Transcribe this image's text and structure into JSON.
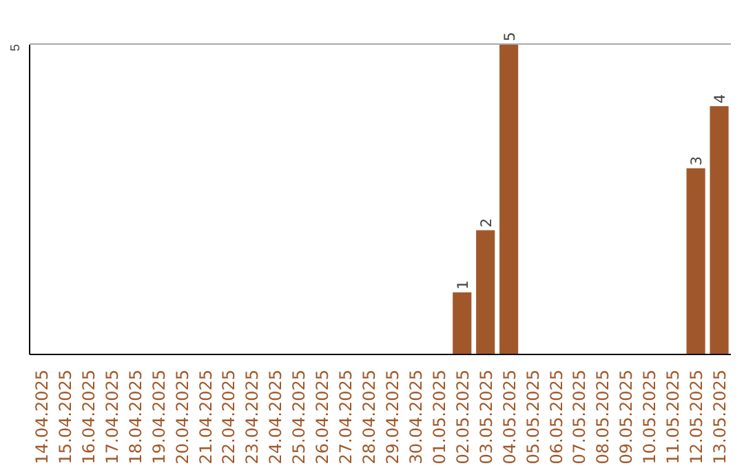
{
  "chart_data": {
    "type": "bar",
    "categories": [
      "14.04.2025",
      "15.04.2025",
      "16.04.2025",
      "17.04.2025",
      "18.04.2025",
      "19.04.2025",
      "20.04.2025",
      "21.04.2025",
      "22.04.2025",
      "23.04.2025",
      "24.04.2025",
      "25.04.2025",
      "26.04.2025",
      "27.04.2025",
      "28.04.2025",
      "29.04.2025",
      "30.04.2025",
      "01.05.2025",
      "02.05.2025",
      "03.05.2025",
      "04.05.2025",
      "05.05.2025",
      "06.05.2025",
      "07.05.2025",
      "08.05.2025",
      "09.05.2025",
      "10.05.2025",
      "11.05.2025",
      "12.05.2025",
      "13.05.2025"
    ],
    "values": [
      null,
      null,
      null,
      null,
      null,
      null,
      null,
      null,
      null,
      null,
      null,
      null,
      null,
      null,
      null,
      null,
      null,
      null,
      1,
      2,
      5,
      null,
      null,
      null,
      null,
      null,
      null,
      null,
      3,
      4
    ],
    "data_labels": true,
    "color": "#a0582a",
    "ylim": [
      0,
      5
    ],
    "yticks": [
      5
    ],
    "ref_lines": [
      {
        "axis": "y",
        "value": 5,
        "color": "#aaaaaa"
      }
    ]
  }
}
